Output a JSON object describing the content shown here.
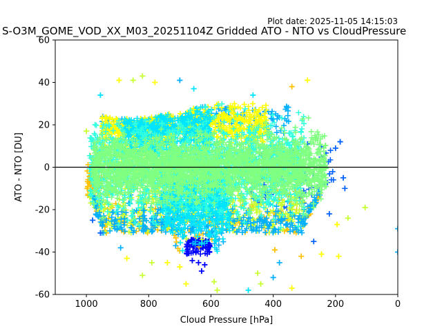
{
  "plot_date": "Plot date: 2025-11-05 14:15:03",
  "chart_data": {
    "type": "scatter",
    "title": "S-O3M_GOME_VOD_XX_M03_20251104Z Gridded ATO - NTO vs CloudPressure",
    "xlabel": "Cloud Pressure [hPa]",
    "ylabel": "ATO - NTO [DU]",
    "xlim": [
      1100,
      0
    ],
    "ylim": [
      -60,
      60
    ],
    "x_inverted": true,
    "xticks": [
      1000,
      800,
      600,
      400,
      200,
      0
    ],
    "yticks": [
      -60,
      -40,
      -20,
      0,
      20,
      40,
      60
    ],
    "reference_line_y": 0,
    "grid": false,
    "legend": "none",
    "marker": "plus",
    "colors": [
      "#0000ff",
      "#0060ff",
      "#00b0ff",
      "#00e5ff",
      "#30ffe0",
      "#80ff80",
      "#c8ff30",
      "#ffff00",
      "#ffc000",
      "#ff9000"
    ],
    "clusters": [
      {
        "color": "#80ff80",
        "x_range": [
          980,
          230
        ],
        "y_mean": 0,
        "y_sd": 7,
        "count": 2200
      },
      {
        "color": "#30ffe0",
        "x_range": [
          990,
          300
        ],
        "y_mean": 0,
        "y_sd": 10,
        "count": 1600
      },
      {
        "color": "#00e5ff",
        "x_range": [
          760,
          540
        ],
        "y_mean": -15,
        "y_sd": 9,
        "count": 700
      },
      {
        "color": "#00e5ff",
        "x_range": [
          880,
          600
        ],
        "y_mean": 18,
        "y_sd": 6,
        "count": 500
      },
      {
        "color": "#ffff00",
        "x_range": [
          950,
          720
        ],
        "y_mean": 20,
        "y_sd": 8,
        "count": 450
      },
      {
        "color": "#ffff00",
        "x_range": [
          700,
          420
        ],
        "y_mean": 20,
        "y_sd": 5,
        "count": 400
      },
      {
        "color": "#c8ff30",
        "x_range": [
          990,
          300
        ],
        "y_mean": -20,
        "y_sd": 6,
        "count": 450
      },
      {
        "color": "#ffc000",
        "x_range": [
          1000,
          950
        ],
        "y_mean": -8,
        "y_sd": 8,
        "count": 80
      },
      {
        "color": "#ffc000",
        "x_range": [
          950,
          250
        ],
        "y_mean": -25,
        "y_sd": 7,
        "count": 180
      },
      {
        "color": "#00b0ff",
        "x_range": [
          980,
          250
        ],
        "y_mean": -28,
        "y_sd": 6,
        "count": 350
      },
      {
        "color": "#00b0ff",
        "x_range": [
          950,
          350
        ],
        "y_mean": 24,
        "y_sd": 4,
        "count": 180
      },
      {
        "color": "#0060ff",
        "x_range": [
          480,
          200
        ],
        "y_mean": -10,
        "y_sd": 12,
        "count": 70
      },
      {
        "color": "#0000ff",
        "x_range": [
          680,
          600
        ],
        "y_mean": -43,
        "y_sd": 3,
        "count": 90
      }
    ],
    "points": [
      {
        "x": 820,
        "y": 43,
        "color": "#c8ff30"
      },
      {
        "x": 895,
        "y": 41,
        "color": "#ffff00"
      },
      {
        "x": 850,
        "y": 41,
        "color": "#c8ff30"
      },
      {
        "x": 700,
        "y": 41,
        "color": "#00b0ff"
      },
      {
        "x": 290,
        "y": 41,
        "color": "#ffff00"
      },
      {
        "x": 780,
        "y": 40,
        "color": "#ffff00"
      },
      {
        "x": 655,
        "y": 37,
        "color": "#00e5ff"
      },
      {
        "x": 340,
        "y": 38,
        "color": "#ffc000"
      },
      {
        "x": 465,
        "y": 34,
        "color": "#00e5ff"
      },
      {
        "x": 955,
        "y": 34,
        "color": "#00e5ff"
      },
      {
        "x": 185,
        "y": 12,
        "color": "#0060ff"
      },
      {
        "x": 175,
        "y": -5,
        "color": "#0060ff"
      },
      {
        "x": 170,
        "y": -10,
        "color": "#0060ff"
      },
      {
        "x": 200,
        "y": 9,
        "color": "#0060ff"
      },
      {
        "x": 105,
        "y": -19,
        "color": "#c8ff30"
      },
      {
        "x": 160,
        "y": -24,
        "color": "#c8ff30"
      },
      {
        "x": 195,
        "y": -27,
        "color": "#ffff00"
      },
      {
        "x": 190,
        "y": -42,
        "color": "#ffff00"
      },
      {
        "x": 245,
        "y": -41,
        "color": "#ffff00"
      },
      {
        "x": 0,
        "y": -29,
        "color": "#00b0ff"
      },
      {
        "x": 0,
        "y": -40,
        "color": "#00b0ff"
      },
      {
        "x": 1000,
        "y": 17,
        "color": "#c8ff30"
      },
      {
        "x": 980,
        "y": -25,
        "color": "#0060ff"
      },
      {
        "x": 955,
        "y": -31,
        "color": "#0060ff"
      },
      {
        "x": 890,
        "y": -38,
        "color": "#00b0ff"
      },
      {
        "x": 870,
        "y": -43,
        "color": "#ffff00"
      },
      {
        "x": 820,
        "y": -51,
        "color": "#c8ff30"
      },
      {
        "x": 790,
        "y": -45,
        "color": "#c8ff30"
      },
      {
        "x": 740,
        "y": -45,
        "color": "#ffff00"
      },
      {
        "x": 700,
        "y": -47,
        "color": "#ffff00"
      },
      {
        "x": 680,
        "y": -55,
        "color": "#ffff00"
      },
      {
        "x": 590,
        "y": -54,
        "color": "#c8ff30"
      },
      {
        "x": 580,
        "y": -58,
        "color": "#c8ff30"
      },
      {
        "x": 480,
        "y": -58,
        "color": "#00e5ff"
      },
      {
        "x": 440,
        "y": -55,
        "color": "#c8ff30"
      },
      {
        "x": 450,
        "y": -50,
        "color": "#c8ff30"
      },
      {
        "x": 400,
        "y": -52,
        "color": "#00b0ff"
      },
      {
        "x": 395,
        "y": -39,
        "color": "#ffc000"
      },
      {
        "x": 380,
        "y": -45,
        "color": "#00b0ff"
      },
      {
        "x": 340,
        "y": -57,
        "color": "#ffff00"
      },
      {
        "x": 310,
        "y": -42,
        "color": "#ffc000"
      },
      {
        "x": 270,
        "y": -35,
        "color": "#0060ff"
      },
      {
        "x": 220,
        "y": -22,
        "color": "#0060ff"
      },
      {
        "x": 630,
        "y": -49,
        "color": "#0000ff"
      },
      {
        "x": 620,
        "y": -46,
        "color": "#0000ff"
      },
      {
        "x": 640,
        "y": -45,
        "color": "#0000ff"
      },
      {
        "x": 660,
        "y": -44,
        "color": "#0000ff"
      }
    ]
  }
}
